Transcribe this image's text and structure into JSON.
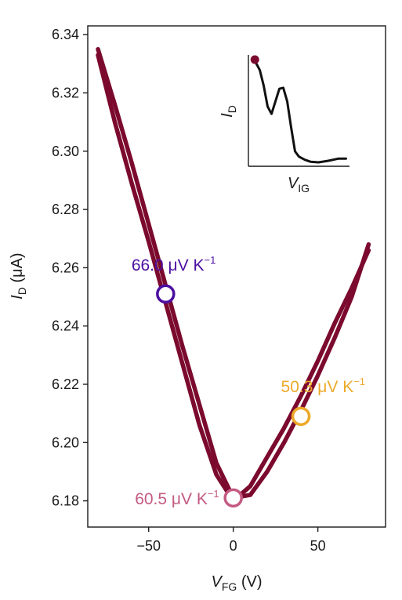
{
  "chart_data": {
    "type": "line",
    "title": "",
    "xlabel": {
      "main": "V",
      "sub": "FG",
      "unit": " (V)"
    },
    "ylabel": {
      "main": "I",
      "sub": "D",
      "unit": " (μA)"
    },
    "xlim": [
      -86,
      90
    ],
    "ylim": [
      6.171,
      6.343
    ],
    "xticks": [
      -50,
      0,
      50
    ],
    "xtick_labels": [
      "−50",
      "0",
      "50"
    ],
    "yticks": [
      6.18,
      6.2,
      6.22,
      6.24,
      6.26,
      6.28,
      6.3,
      6.32,
      6.34
    ],
    "ytick_labels": [
      "6.18",
      "6.20",
      "6.22",
      "6.24",
      "6.26",
      "6.28",
      "6.30",
      "6.32",
      "6.34"
    ],
    "grid": false,
    "series": [
      {
        "color": "#7b0a2e",
        "x": [
          -80,
          -70,
          -60,
          -50,
          -40,
          -30,
          -20,
          -10,
          0,
          10,
          20,
          30,
          40,
          50,
          60,
          70,
          80
        ],
        "y": [
          6.335,
          6.316,
          6.296,
          6.275,
          6.254,
          6.233,
          6.213,
          6.193,
          6.181,
          6.182,
          6.19,
          6.2,
          6.211,
          6.223,
          6.236,
          6.25,
          6.268
        ]
      },
      {
        "color": "#7b0a2e",
        "x": [
          -80,
          -70,
          -60,
          -50,
          -40,
          -30,
          -20,
          -10,
          0,
          10,
          20,
          30,
          40,
          50,
          60,
          70,
          80
        ],
        "y": [
          6.333,
          6.31,
          6.289,
          6.269,
          6.248,
          6.227,
          6.206,
          6.189,
          6.18,
          6.185,
          6.195,
          6.205,
          6.216,
          6.228,
          6.241,
          6.253,
          6.266
        ]
      }
    ],
    "annotations": [
      {
        "x": -40,
        "y": 6.251,
        "label": "66.0 μV K",
        "sup": "−1",
        "color": "#4b0fa1",
        "label_pos": "above-left"
      },
      {
        "x": 40,
        "y": 6.209,
        "label": "50.3 μV K",
        "sup": "−1",
        "color": "#eda929",
        "label_pos": "above-right"
      },
      {
        "x": 0,
        "y": 6.181,
        "label": "60.5 μV K",
        "sup": "−1",
        "color": "#c45a82",
        "label_pos": "left"
      }
    ],
    "inset": {
      "type": "line",
      "xlabel": {
        "main": "V",
        "sub": "IG"
      },
      "ylabel": {
        "main": "I",
        "sub": "D"
      },
      "xlim": [
        0,
        1
      ],
      "ylim": [
        0,
        1
      ],
      "series": {
        "color": "#111111",
        "x": [
          0.02,
          0.06,
          0.1,
          0.14,
          0.18,
          0.22,
          0.26,
          0.3,
          0.34,
          0.38,
          0.42,
          0.46,
          0.5,
          0.56,
          0.62,
          0.7,
          0.8,
          0.9,
          0.98
        ],
        "y": [
          1.0,
          0.97,
          0.9,
          0.75,
          0.55,
          0.48,
          0.6,
          0.72,
          0.73,
          0.6,
          0.35,
          0.12,
          0.07,
          0.04,
          0.02,
          0.015,
          0.03,
          0.05,
          0.05
        ]
      },
      "marker": {
        "x": 0.05,
        "y": 1.0,
        "color": "#7b0a2e"
      }
    }
  }
}
